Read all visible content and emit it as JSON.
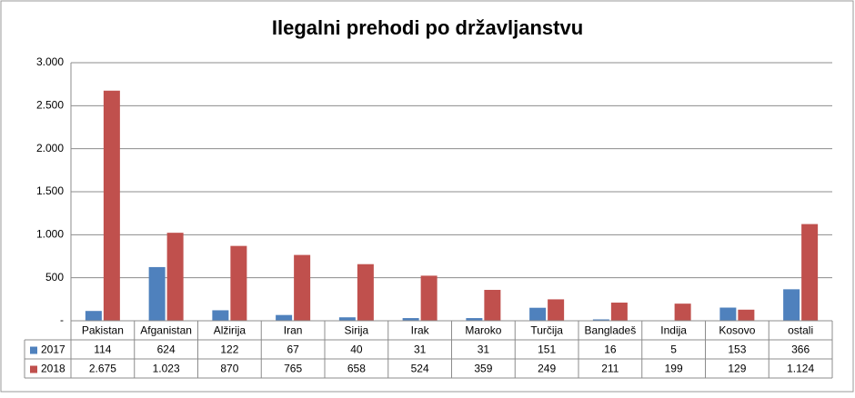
{
  "chart_data": {
    "type": "bar",
    "title": "Ilegalni prehodi po državljanstvu",
    "categories": [
      "Pakistan",
      "Afganistan",
      "Alžirija",
      "Iran",
      "Sirija",
      "Irak",
      "Maroko",
      "Turčija",
      "Bangladeš",
      "Indija",
      "Kosovo",
      "ostali"
    ],
    "series": [
      {
        "name": "2017",
        "color": "#4f81bd",
        "values": [
          114,
          624,
          122,
          67,
          40,
          31,
          31,
          151,
          16,
          5,
          153,
          366
        ]
      },
      {
        "name": "2018",
        "color": "#c0504d",
        "values": [
          2675,
          1023,
          870,
          765,
          658,
          524,
          359,
          249,
          211,
          199,
          129,
          1124
        ],
        "value_labels": [
          "2.675",
          "1.023",
          "870",
          "765",
          "658",
          "524",
          "359",
          "249",
          "211",
          "199",
          "129",
          "1.124"
        ]
      }
    ],
    "ylim": [
      0,
      3000
    ],
    "yticks": [
      {
        "value": 0,
        "label": "-"
      },
      500,
      {
        "value": 1000,
        "label": "1.000"
      },
      {
        "value": 1500,
        "label": "1.500"
      },
      {
        "value": 2000,
        "label": "2.000"
      },
      {
        "value": 2500,
        "label": "2.500"
      },
      {
        "value": 3000,
        "label": "3.000"
      }
    ],
    "grid": true
  }
}
